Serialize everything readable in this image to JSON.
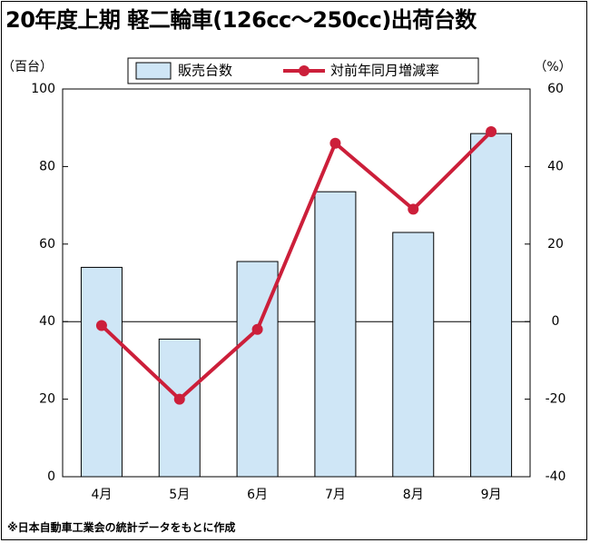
{
  "chart_data": {
    "type": "bar+line",
    "title": "20年度上期 軽二輪車(126cc～250cc)出荷台数",
    "categories": [
      "4月",
      "5月",
      "6月",
      "7月",
      "8月",
      "9月"
    ],
    "series": [
      {
        "name": "販売台数",
        "type": "bar",
        "axis": "left",
        "values": [
          54,
          35.5,
          55.5,
          73.5,
          63,
          88.5
        ]
      },
      {
        "name": "対前年同月増減率",
        "type": "line",
        "axis": "right",
        "values": [
          -1,
          -20,
          -2,
          46,
          29,
          49
        ]
      }
    ],
    "y_left": {
      "unit": "（百台）",
      "min": 0,
      "max": 100,
      "ticks": [
        0,
        20,
        40,
        60,
        80,
        100
      ]
    },
    "y_right": {
      "unit": "（%）",
      "min": -40,
      "max": 60,
      "ticks": [
        60,
        40,
        20,
        0,
        -20,
        -40
      ]
    },
    "legend_placement": "top-center",
    "colors": {
      "bar_fill": "#cfe6f6",
      "line": "#cc1f3a"
    }
  },
  "note": "※日本自動車工業会の統計データをもとに作成"
}
